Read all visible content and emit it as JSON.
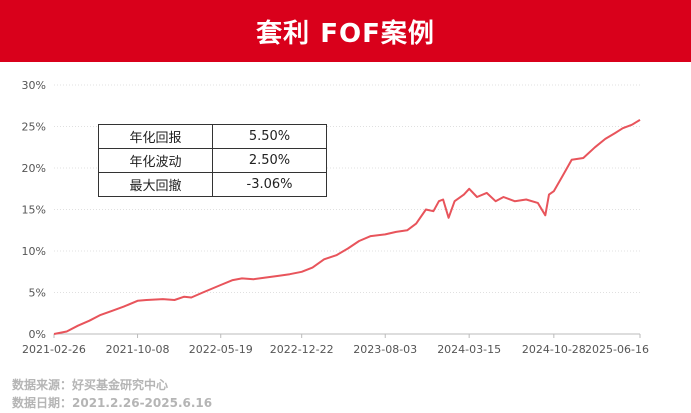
{
  "title": "套利 FOF案例",
  "colors": {
    "banner": "#d9001b",
    "line": "#e8545b",
    "grid": "#e0e0e0",
    "axis": "#555555"
  },
  "stats": [
    {
      "label": "年化回报",
      "value": "5.50%"
    },
    {
      "label": "年化波动",
      "value": "2.50%"
    },
    {
      "label": "最大回撤",
      "value": "-3.06%"
    }
  ],
  "source": {
    "line1": "数据来源：好买基金研究中心",
    "line2": "数据日期：2021.2.26-2025.6.16"
  },
  "chart_data": {
    "type": "line",
    "title": "",
    "xlabel": "",
    "ylabel": "",
    "x_ticks": [
      "2021-02-26",
      "2021-10-08",
      "2022-05-19",
      "2022-12-22",
      "2023-08-03",
      "2024-03-15",
      "2024-10-28",
      "2025-06-16"
    ],
    "y_ticks": [
      "0%",
      "5%",
      "10%",
      "15%",
      "20%",
      "25%",
      "30%"
    ],
    "ylim": [
      0,
      30
    ],
    "grid": true,
    "series": [
      {
        "values": [
          [
            "2021-02-26",
            0.0
          ],
          [
            "2021-04-01",
            0.3
          ],
          [
            "2021-05-01",
            1.0
          ],
          [
            "2021-06-01",
            1.6
          ],
          [
            "2021-07-01",
            2.3
          ],
          [
            "2021-08-01",
            2.8
          ],
          [
            "2021-09-01",
            3.3
          ],
          [
            "2021-10-08",
            4.0
          ],
          [
            "2021-11-01",
            4.1
          ],
          [
            "2021-12-15",
            4.2
          ],
          [
            "2022-01-15",
            4.1
          ],
          [
            "2022-02-10",
            4.5
          ],
          [
            "2022-03-01",
            4.4
          ],
          [
            "2022-04-01",
            5.0
          ],
          [
            "2022-05-19",
            5.9
          ],
          [
            "2022-06-20",
            6.5
          ],
          [
            "2022-07-15",
            6.7
          ],
          [
            "2022-08-15",
            6.6
          ],
          [
            "2022-09-15",
            6.8
          ],
          [
            "2022-10-20",
            7.0
          ],
          [
            "2022-11-20",
            7.2
          ],
          [
            "2022-12-22",
            7.5
          ],
          [
            "2023-01-20",
            8.0
          ],
          [
            "2023-02-20",
            9.0
          ],
          [
            "2023-03-25",
            9.5
          ],
          [
            "2023-04-25",
            10.3
          ],
          [
            "2023-05-25",
            11.2
          ],
          [
            "2023-06-25",
            11.8
          ],
          [
            "2023-08-03",
            12.0
          ],
          [
            "2023-09-01",
            12.3
          ],
          [
            "2023-10-01",
            12.5
          ],
          [
            "2023-10-25",
            13.3
          ],
          [
            "2023-11-20",
            15.0
          ],
          [
            "2023-12-10",
            14.8
          ],
          [
            "2023-12-25",
            16.0
          ],
          [
            "2024-01-05",
            16.2
          ],
          [
            "2024-01-20",
            14.0
          ],
          [
            "2024-02-05",
            16.0
          ],
          [
            "2024-03-01",
            16.8
          ],
          [
            "2024-03-15",
            17.5
          ],
          [
            "2024-04-05",
            16.5
          ],
          [
            "2024-05-01",
            17.0
          ],
          [
            "2024-05-25",
            16.0
          ],
          [
            "2024-06-15",
            16.5
          ],
          [
            "2024-07-15",
            16.0
          ],
          [
            "2024-08-15",
            16.2
          ],
          [
            "2024-09-15",
            15.8
          ],
          [
            "2024-10-05",
            14.3
          ],
          [
            "2024-10-15",
            16.8
          ],
          [
            "2024-10-28",
            17.2
          ],
          [
            "2024-11-20",
            19.0
          ],
          [
            "2024-12-15",
            21.0
          ],
          [
            "2025-01-15",
            21.2
          ],
          [
            "2025-02-15",
            22.5
          ],
          [
            "2025-03-15",
            23.5
          ],
          [
            "2025-04-10",
            24.2
          ],
          [
            "2025-05-01",
            24.8
          ],
          [
            "2025-05-25",
            25.2
          ],
          [
            "2025-06-16",
            25.8
          ]
        ]
      }
    ]
  }
}
